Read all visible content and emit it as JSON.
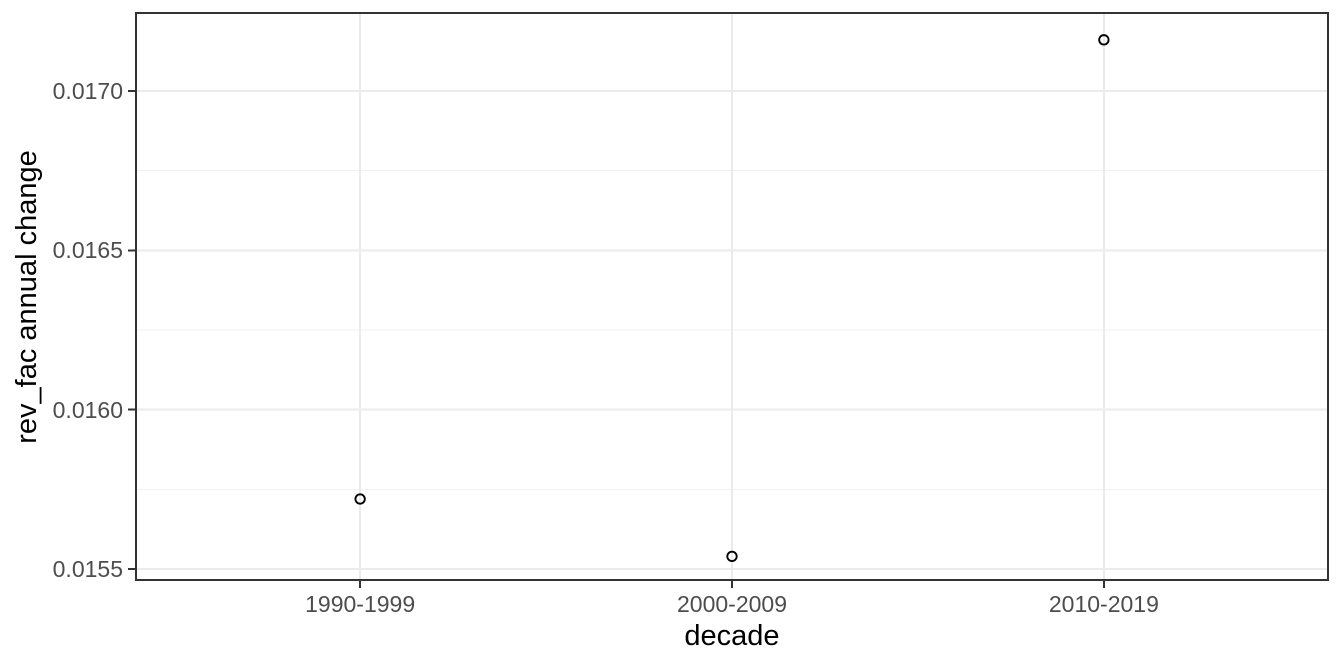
{
  "chart_data": {
    "type": "scatter",
    "title": "",
    "xlabel": "decade",
    "ylabel": "rev_fac annual change",
    "categories": [
      "1990-1999",
      "2000-2009",
      "2010-2019"
    ],
    "values": [
      0.01572,
      0.01554,
      0.01716
    ],
    "y_ticks": [
      {
        "value": 0.0155,
        "label": "0.0155"
      },
      {
        "value": 0.016,
        "label": "0.0160"
      },
      {
        "value": 0.0165,
        "label": "0.0165"
      },
      {
        "value": 0.017,
        "label": "0.0170"
      }
    ],
    "y_minor_gridlines": [
      0.01575,
      0.01625,
      0.01675
    ],
    "ylim": [
      0.015469,
      0.017241
    ],
    "grid": "major-horizontal-and-vertical-plus-minor-horizontal",
    "legend_position": "none",
    "marker": "open-circle",
    "theme": "ggplot2-bw"
  },
  "colors": {
    "background": "#FFFFFF",
    "panel_background": "#FFFFFF",
    "panel_border": "#333333",
    "grid_major": "#EBEBEB",
    "grid_minor": "#F1F1F1",
    "axis_tick": "#333333",
    "tick_label_color": "#4D4D4D",
    "axis_title_color": "#000000",
    "point_stroke": "#000000"
  }
}
